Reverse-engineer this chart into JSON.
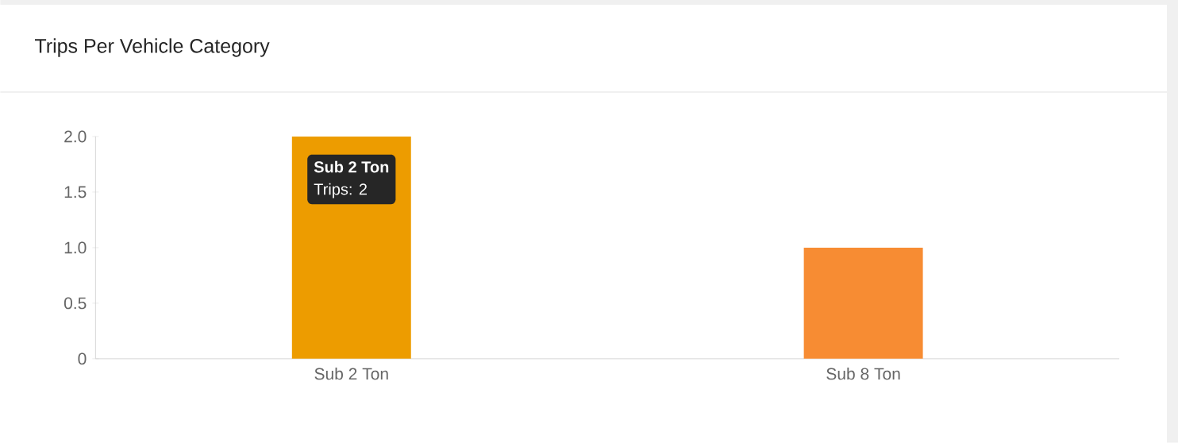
{
  "chart_data": {
    "type": "bar",
    "title": "Trips Per Vehicle Category",
    "categories": [
      "Sub 2 Ton",
      "Sub 8 Ton"
    ],
    "values": [
      2,
      1
    ],
    "colors": [
      "#ed9c00",
      "#f78c33"
    ],
    "ylim": [
      0,
      2
    ],
    "yticks": [
      0,
      0.5,
      {
        "value": 1,
        "label": "1.0"
      },
      1.5,
      {
        "value": 2,
        "label": "2.0"
      }
    ],
    "annotations": [
      "Sub 2 Ton",
      "Trips: 2"
    ]
  }
}
